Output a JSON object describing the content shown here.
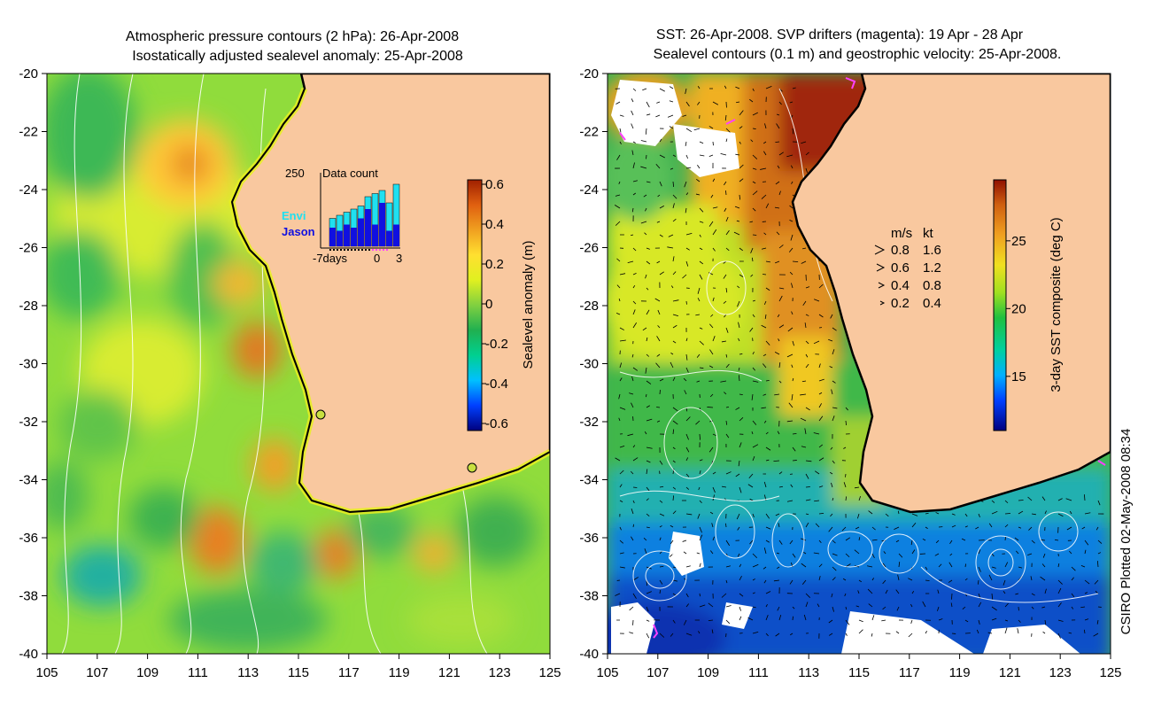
{
  "left_panel": {
    "title_line1": "Atmospheric pressure contours (2 hPa): 26-Apr-2008",
    "title_line2": "Isostatically adjusted sealevel anomaly: 25-Apr-2008",
    "colorbar": {
      "label": "Sealevel anomaly (m)",
      "ticks": [
        "0.6",
        "0.4",
        "0.2",
        "0",
        "-0.2",
        "-0.4",
        "-0.6"
      ],
      "range": [
        -0.6,
        0.6
      ],
      "colors": [
        "#00007f",
        "#0040ff",
        "#00c0ff",
        "#00d090",
        "#20b050",
        "#80d040",
        "#e0f020",
        "#ffe030",
        "#f0a020",
        "#e06010",
        "#a02000"
      ]
    },
    "inset": {
      "title": "Data count",
      "max_label": "250",
      "legend_envi": "Envi",
      "legend_jason": "Jason",
      "axis_left": "-7days",
      "axis_zero": "0",
      "axis_right": "3",
      "envi_color": "#20e0f0",
      "jason_color": "#1010e0",
      "bars_envi": [
        0,
        0.45,
        0.5,
        0.55,
        0.6,
        0.65,
        0.8,
        0.85,
        0.9,
        0.7,
        1.0
      ],
      "bars_jason": [
        0,
        0.3,
        0.25,
        0.35,
        0.3,
        0.45,
        0.6,
        0.35,
        0.7,
        0.25,
        0.35
      ]
    }
  },
  "right_panel": {
    "title_line1": "SST: 26-Apr-2008. SVP drifters (magenta): 19 Apr - 28 Apr",
    "title_line2": "Sealevel contours (0.1 m) and geostrophic velocity: 25-Apr-2008.",
    "colorbar": {
      "label": "3-day SST composite (deg C)",
      "ticks": [
        "25",
        "20",
        "15"
      ],
      "tick_values": [
        25,
        20,
        15
      ],
      "range": [
        11,
        29.5
      ],
      "colors": [
        "#00007f",
        "#0040ff",
        "#00b0ff",
        "#00d0a0",
        "#20c040",
        "#a0e020",
        "#f0e020",
        "#f0a020",
        "#d06010",
        "#901000"
      ]
    },
    "velocity_legend": {
      "header_ms": "m/s",
      "header_kt": "kt",
      "rows": [
        {
          "ms": "0.8",
          "kt": "1.6"
        },
        {
          "ms": "0.6",
          "kt": "1.2"
        },
        {
          "ms": "0.4",
          "kt": "0.8"
        },
        {
          "ms": "0.2",
          "kt": "0.4"
        }
      ]
    },
    "credit": "CSIRO Plotted 02-May-2008 08:34"
  },
  "axes": {
    "lat_labels": [
      "-20",
      "-22",
      "-24",
      "-26",
      "-28",
      "-30",
      "-32",
      "-34",
      "-36",
      "-38",
      "-40"
    ],
    "lon_labels": [
      "105",
      "107",
      "109",
      "111",
      "113",
      "115",
      "117",
      "119",
      "121",
      "123",
      "125"
    ]
  },
  "colors": {
    "land": "#f9c89f",
    "coast": "#000000",
    "contour": "#ffffff",
    "drifter": "#ff40ff"
  }
}
